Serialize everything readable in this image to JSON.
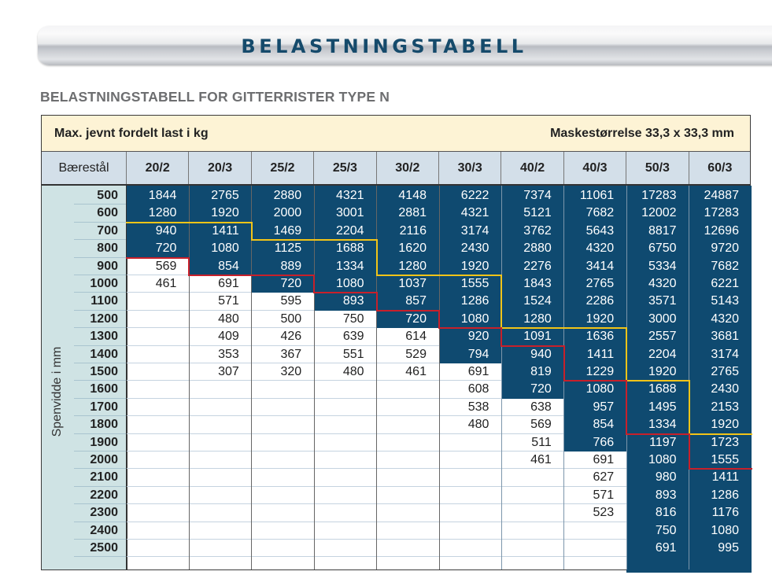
{
  "banner": {
    "title": "BELASTNINGSTABELL"
  },
  "subtitle": "BELASTNINGSTABELL FOR GITTERRISTER TYPE N",
  "table": {
    "caption_left": "Max. jevnt fordelt last i kg",
    "caption_right": "Maskestørrelse 33,3 x 33,3 mm",
    "header_label": "Bærestål",
    "columns": [
      "20/2",
      "20/3",
      "25/2",
      "25/3",
      "30/2",
      "30/3",
      "40/2",
      "40/3",
      "50/3",
      "60/3"
    ],
    "row_axis_label": "Spenvidde i mm",
    "rows": [
      "500",
      "600",
      "700",
      "800",
      "900",
      "1000",
      "1100",
      "1200",
      "1300",
      "1400",
      "1500",
      "1600",
      "1700",
      "1800",
      "1900",
      "2000",
      "2100",
      "2200",
      "2300",
      "2400",
      "2500"
    ],
    "values": [
      [
        "1844",
        "2765",
        "2880",
        "4321",
        "4148",
        "6222",
        "7374",
        "11061",
        "17283",
        "24887"
      ],
      [
        "1280",
        "1920",
        "2000",
        "3001",
        "2881",
        "4321",
        "5121",
        "7682",
        "12002",
        "17283"
      ],
      [
        "940",
        "1411",
        "1469",
        "2204",
        "2116",
        "3174",
        "3762",
        "5643",
        "8817",
        "12696"
      ],
      [
        "720",
        "1080",
        "1125",
        "1688",
        "1620",
        "2430",
        "2880",
        "4320",
        "6750",
        "9720"
      ],
      [
        "569",
        "854",
        "889",
        "1334",
        "1280",
        "1920",
        "2276",
        "3414",
        "5334",
        "7682"
      ],
      [
        "461",
        "691",
        "720",
        "1080",
        "1037",
        "1555",
        "1843",
        "2765",
        "4320",
        "6221"
      ],
      [
        "",
        "571",
        "595",
        "893",
        "857",
        "1286",
        "1524",
        "2286",
        "3571",
        "5143"
      ],
      [
        "",
        "480",
        "500",
        "750",
        "720",
        "1080",
        "1280",
        "1920",
        "3000",
        "4320"
      ],
      [
        "",
        "409",
        "426",
        "639",
        "614",
        "920",
        "1091",
        "1636",
        "2557",
        "3681"
      ],
      [
        "",
        "353",
        "367",
        "551",
        "529",
        "794",
        "940",
        "1411",
        "2204",
        "3174"
      ],
      [
        "",
        "307",
        "320",
        "480",
        "461",
        "691",
        "819",
        "1229",
        "1920",
        "2765"
      ],
      [
        "",
        "",
        "",
        "",
        "",
        "608",
        "720",
        "1080",
        "1688",
        "2430"
      ],
      [
        "",
        "",
        "",
        "",
        "",
        "538",
        "638",
        "957",
        "1495",
        "2153"
      ],
      [
        "",
        "",
        "",
        "",
        "",
        "480",
        "569",
        "854",
        "1334",
        "1920"
      ],
      [
        "",
        "",
        "",
        "",
        "",
        "",
        "511",
        "766",
        "1197",
        "1723"
      ],
      [
        "",
        "",
        "",
        "",
        "",
        "",
        "461",
        "691",
        "1080",
        "1555"
      ],
      [
        "",
        "",
        "",
        "",
        "",
        "",
        "",
        "627",
        "980",
        "1411"
      ],
      [
        "",
        "",
        "",
        "",
        "",
        "",
        "",
        "571",
        "893",
        "1286"
      ],
      [
        "",
        "",
        "",
        "",
        "",
        "",
        "",
        "523",
        "816",
        "1176"
      ],
      [
        "",
        "",
        "",
        "",
        "",
        "",
        "",
        "",
        "750",
        "1080"
      ],
      [
        "",
        "",
        "",
        "",
        "",
        "",
        "",
        "",
        "691",
        "995"
      ]
    ],
    "highlight_last_row_index": [
      3,
      4,
      5,
      6,
      7,
      9,
      11,
      14,
      20,
      20
    ],
    "colors": {
      "highlight_blue": "#0f4a70",
      "red_line": "#c8202a",
      "yellow_line": "#f2c418",
      "caption_bg": "#fdf3d5",
      "header_bg": "#d3dfe9",
      "axis_bg": "#cfe3e4",
      "title_blue": "#154a6b"
    }
  }
}
